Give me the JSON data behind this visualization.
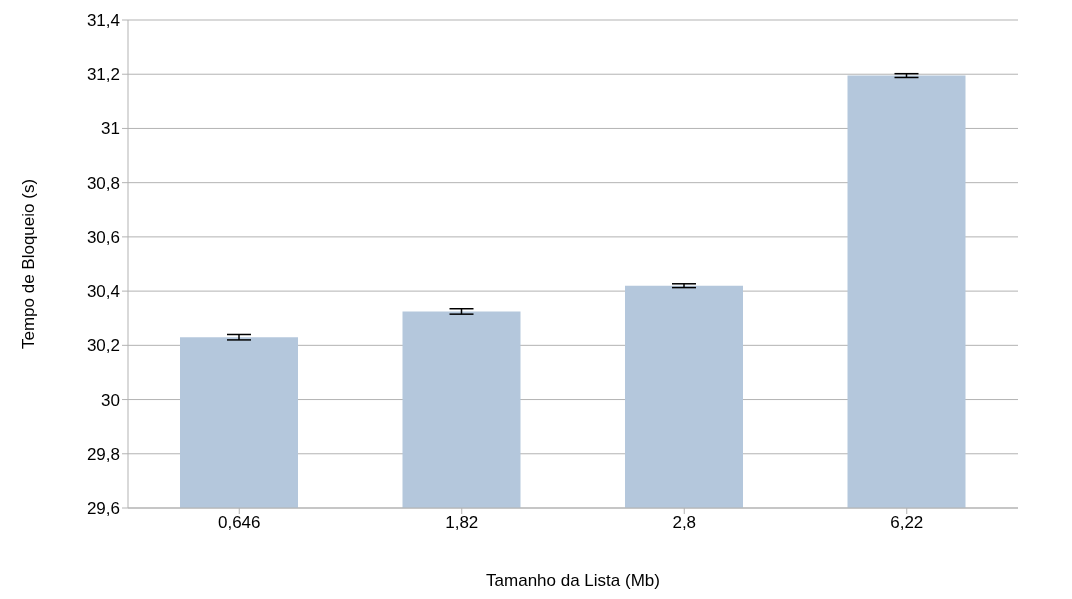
{
  "chart_data": {
    "type": "bar",
    "xlabel": "Tamanho da Lista (Mb)",
    "ylabel": "Tempo de Bloqueio (s)",
    "categories": [
      "0,646",
      "1,82",
      "2,8",
      "6,22"
    ],
    "values": [
      30.23,
      30.325,
      30.42,
      31.195
    ],
    "errors": [
      0.01,
      0.01,
      0.007,
      0.007
    ],
    "color": "#b4c7dc",
    "ylim": [
      29.6,
      31.4
    ],
    "yticks": [
      {
        "value": 29.6,
        "label": "29,6"
      },
      {
        "value": 29.8,
        "label": "29,8"
      },
      30,
      {
        "value": 30.2,
        "label": "30,2"
      },
      {
        "value": 30.4,
        "label": "30,4"
      },
      {
        "value": 30.6,
        "label": "30,6"
      },
      {
        "value": 30.8,
        "label": "30,8"
      },
      31,
      {
        "value": 31.2,
        "label": "31,2"
      },
      {
        "value": 31.4,
        "label": "31,4"
      }
    ],
    "grid": "y",
    "legend": false
  }
}
